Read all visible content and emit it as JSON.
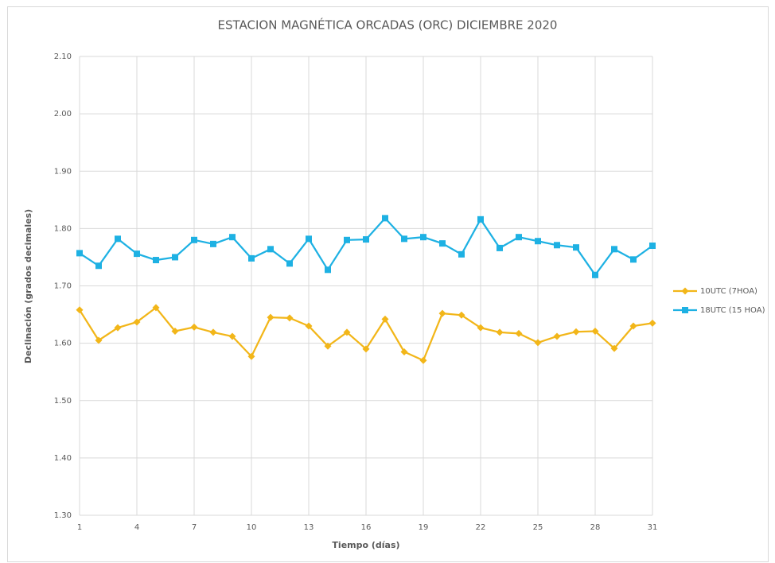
{
  "chart_data": {
    "type": "line",
    "title": "ESTACION MAGNÉTICA ORCADAS (ORC)  DICIEMBRE 2020",
    "x_label": "Tiempo (días)",
    "y_label": "Declinación (grados decimales)",
    "x": [
      1,
      2,
      3,
      4,
      5,
      6,
      7,
      8,
      9,
      10,
      11,
      12,
      13,
      14,
      15,
      16,
      17,
      18,
      19,
      20,
      21,
      22,
      23,
      24,
      25,
      26,
      27,
      28,
      29,
      30,
      31
    ],
    "series": [
      {
        "name": "10UTC (7HOA)",
        "color": "#f2b619",
        "marker": "diamond",
        "values": [
          1.658,
          1.605,
          1.627,
          1.637,
          1.662,
          1.621,
          1.628,
          1.619,
          1.612,
          1.577,
          1.645,
          1.644,
          1.63,
          1.595,
          1.619,
          1.59,
          1.642,
          1.585,
          1.57,
          1.652,
          1.649,
          1.627,
          1.619,
          1.617,
          1.601,
          1.612,
          1.62,
          1.621,
          1.591,
          1.63,
          1.635
        ]
      },
      {
        "name": "18UTC (15 HOA)",
        "color": "#1eb1e3",
        "marker": "square",
        "values": [
          1.757,
          1.735,
          1.782,
          1.756,
          1.745,
          1.75,
          1.78,
          1.773,
          1.785,
          1.748,
          1.764,
          1.739,
          1.782,
          1.728,
          1.78,
          1.781,
          1.818,
          1.782,
          1.785,
          1.774,
          1.755,
          1.816,
          1.766,
          1.785,
          1.778,
          1.771,
          1.767,
          1.719,
          1.764,
          1.746,
          1.77
        ]
      }
    ],
    "xlim": [
      1,
      31
    ],
    "xticks": [
      1,
      4,
      7,
      10,
      13,
      16,
      19,
      22,
      25,
      28,
      31
    ],
    "ylim": [
      1.3,
      2.1
    ],
    "yticks": [
      {
        "value": 1.3,
        "label": "1.30"
      },
      {
        "value": 1.4,
        "label": "1.40"
      },
      {
        "value": 1.5,
        "label": "1.50"
      },
      {
        "value": 1.6,
        "label": "1.60"
      },
      {
        "value": 1.7,
        "label": "1.70"
      },
      {
        "value": 1.8,
        "label": "1.80"
      },
      {
        "value": 1.9,
        "label": "1.90"
      },
      {
        "value": 2.0,
        "label": "2.00"
      },
      {
        "value": 2.1,
        "label": "2.10"
      }
    ],
    "grid": true,
    "legend": "right"
  }
}
